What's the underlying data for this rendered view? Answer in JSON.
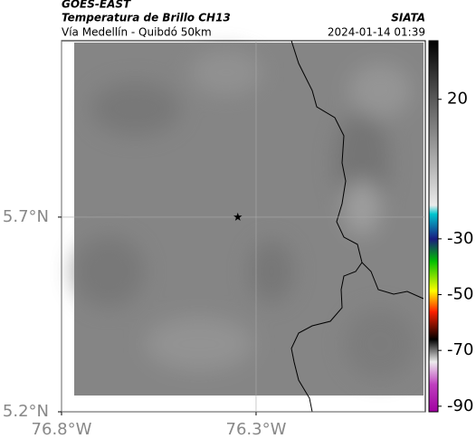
{
  "header": {
    "agency": "GOES-EAST",
    "title": "Temperatura de Brillo CH13",
    "source": "SIATA",
    "subtitle": "Vía Medellín - Quibdó 50km",
    "datetime": "2024-01-14 01:39"
  },
  "map": {
    "xlim": [
      -76.8,
      -75.865
    ],
    "ylim": [
      5.2,
      6.153
    ],
    "xticks": [
      {
        "value": -76.8,
        "label": "76.8°W"
      },
      {
        "value": -76.3,
        "label": "76.3°W"
      }
    ],
    "yticks": [
      {
        "value": 5.2,
        "label": "5.2°N"
      },
      {
        "value": 5.7,
        "label": "5.7°N"
      }
    ],
    "grid": true,
    "site": {
      "lon": -76.347,
      "lat": 5.7
    }
  },
  "colorbar": {
    "lim": [
      -92,
      41
    ],
    "ticks": [
      20,
      -30,
      -50,
      -70,
      -90
    ],
    "stops": [
      {
        "value": 41,
        "color": "#000000"
      },
      {
        "value": 20,
        "color": "#5a5a5a"
      },
      {
        "value": -18,
        "color": "#ebebeb"
      },
      {
        "value": -21,
        "color": "#00c8d0"
      },
      {
        "value": -30,
        "color": "#1a1a80"
      },
      {
        "value": -38,
        "color": "#00c000"
      },
      {
        "value": -48.6,
        "color": "#ffff00"
      },
      {
        "value": -56,
        "color": "#ff2000"
      },
      {
        "value": -66,
        "color": "#000000"
      },
      {
        "value": -74,
        "color": "#eeeeee"
      },
      {
        "value": -82,
        "color": "#c040c0"
      },
      {
        "value": -92,
        "color": "#a000a0"
      }
    ]
  }
}
